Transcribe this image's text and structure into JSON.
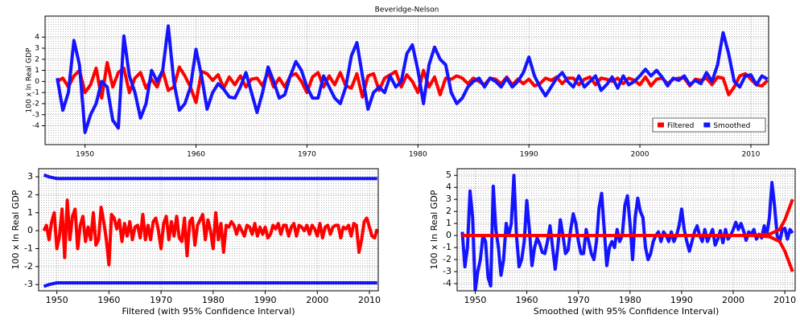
{
  "chart_data": [
    {
      "type": "line",
      "title": "Beveridge-Nelson",
      "ylabel": "100 x ln Real GDP",
      "legend": "lower right",
      "grid": true,
      "xlim": [
        1946.4,
        2011.6
      ],
      "ylim": [
        -5.7,
        5.9
      ],
      "xticks": [
        1950,
        1960,
        1970,
        1980,
        1990,
        2000,
        2010
      ],
      "yticks": [
        -4,
        -3,
        -2,
        -1,
        0,
        1,
        2,
        3,
        4
      ],
      "x": [
        1947.5,
        1948,
        1948.5,
        1949,
        1949.5,
        1950,
        1950.5,
        1951,
        1951.5,
        1952,
        1952.5,
        1953,
        1953.5,
        1954,
        1954.5,
        1955,
        1955.5,
        1956,
        1956.5,
        1957,
        1957.5,
        1958,
        1958.5,
        1959,
        1959.5,
        1960,
        1960.5,
        1961,
        1961.5,
        1962,
        1962.5,
        1963,
        1963.5,
        1964,
        1964.5,
        1965,
        1965.5,
        1966,
        1966.5,
        1967,
        1967.5,
        1968,
        1968.5,
        1969,
        1969.5,
        1970,
        1970.5,
        1971,
        1971.5,
        1972,
        1972.5,
        1973,
        1973.5,
        1974,
        1974.5,
        1975,
        1975.5,
        1976,
        1976.5,
        1977,
        1977.5,
        1978,
        1978.5,
        1979,
        1979.5,
        1980,
        1980.5,
        1981,
        1981.5,
        1982,
        1982.5,
        1983,
        1983.5,
        1984,
        1984.5,
        1985,
        1985.5,
        1986,
        1986.5,
        1987,
        1987.5,
        1988,
        1988.5,
        1989,
        1989.5,
        1990,
        1990.5,
        1991,
        1991.5,
        1992,
        1992.5,
        1993,
        1993.5,
        1994,
        1994.5,
        1995,
        1995.5,
        1996,
        1996.5,
        1997,
        1997.5,
        1998,
        1998.5,
        1999,
        1999.5,
        2000,
        2000.5,
        2001,
        2001.5,
        2002,
        2002.5,
        2003,
        2003.5,
        2004,
        2004.5,
        2005,
        2005.5,
        2006,
        2006.5,
        2007,
        2007.5,
        2008,
        2008.5,
        2009,
        2009.5,
        2010,
        2010.5,
        2011,
        2011.5
      ],
      "series": [
        {
          "name": "Filtered",
          "color": "#ff0000",
          "values": [
            0,
            0.3,
            -0.5,
            0.5,
            1,
            -1,
            -0.3,
            1.2,
            -1.5,
            1.7,
            -0.5,
            0.8,
            1.2,
            -1,
            0.3,
            0.8,
            -0.6,
            0.2,
            -0.5,
            1,
            -0.8,
            -0.5,
            1.3,
            0.5,
            -0.5,
            -1.9,
            0.9,
            0.7,
            0.1,
            0.6,
            -0.6,
            0.4,
            -0.3,
            0.5,
            -0.5,
            0.2,
            0.3,
            -0.4,
            0.9,
            -0.5,
            0.3,
            -0.5,
            0.5,
            0.7,
            0,
            -1,
            0.4,
            0.8,
            -0.5,
            0.5,
            -0.3,
            0.8,
            -0.4,
            -0.6,
            0.7,
            -1.4,
            0.5,
            0.7,
            -0.8,
            0.3,
            0.6,
            0.9,
            -0.5,
            0.6,
            0,
            -1,
            1,
            -0.5,
            0.4,
            -1.2,
            0.3,
            0.2,
            0.5,
            0.3,
            -0.2,
            0.3,
            0,
            -0.3,
            0.3,
            0.2,
            -0.2,
            0.4,
            -0.3,
            0.2,
            -0.2,
            0.2,
            -0.4,
            -0.2,
            0.3,
            0.1,
            0.4,
            -0.2,
            0.3,
            0.3,
            -0.3,
            0.2,
            0.4,
            -0.3,
            0.3,
            0.2,
            0,
            0.3,
            -0.2,
            0.3,
            0.1,
            -0.3,
            0.4,
            -0.4,
            0.2,
            0.3,
            -0.2,
            0.2,
            0.3,
            0.3,
            -0.4,
            0.2,
            0.1,
            0.3,
            -0.3,
            0.4,
            0.3,
            -1.2,
            -0.5,
            0.5,
            0.7,
            0.2,
            -0.3,
            -0.4,
            0.1
          ]
        },
        {
          "name": "Smoothed",
          "color": "#1414ff",
          "values": [
            0.3,
            -2.6,
            -1,
            3.7,
            1.5,
            -4.6,
            -3,
            -2,
            0,
            -0.5,
            -3.5,
            -4.2,
            4.1,
            0.5,
            -1,
            -3.3,
            -2,
            1,
            0,
            1,
            5,
            0,
            -2.6,
            -2,
            -0.5,
            2.9,
            0.5,
            -2.5,
            -1,
            -0.2,
            -0.7,
            -1.4,
            -1.5,
            -0.5,
            0.8,
            -1,
            -2.8,
            -1,
            1.3,
            0,
            -1.5,
            -1.2,
            0.5,
            1.8,
            1,
            -0.5,
            -1.5,
            -1.5,
            0.5,
            -0.5,
            -1.5,
            -2,
            -0.5,
            2.3,
            3.5,
            0.5,
            -2.5,
            -1,
            -0.5,
            -1,
            0.5,
            -0.5,
            0,
            2.5,
            3.3,
            1,
            -2,
            1.5,
            3.1,
            2,
            1.5,
            -1,
            -2,
            -1.5,
            -0.5,
            0,
            0.3,
            -0.5,
            0.3,
            0,
            -0.5,
            0.3,
            -0.5,
            0,
            0.8,
            2.2,
            0.5,
            -0.5,
            -1.3,
            -0.5,
            0.3,
            0.8,
            0,
            -0.5,
            0.5,
            -0.5,
            0,
            0.5,
            -0.8,
            -0.3,
            0.4,
            -0.6,
            0.5,
            -0.3,
            0,
            0.5,
            1.1,
            0.5,
            1,
            0.4,
            -0.4,
            0.3,
            0.1,
            0.5,
            -0.3,
            0.1,
            -0.2,
            0.8,
            0,
            1.5,
            4.4,
            2.5,
            0,
            -0.5,
            0.5,
            0.6,
            -0.3,
            0.5,
            0.2
          ]
        }
      ]
    },
    {
      "type": "line",
      "xlabel": "Filtered (with 95% Confidence Interval)",
      "ylabel": "100 x ln Real GDP",
      "grid": true,
      "xlim": [
        1946.5,
        2011.7
      ],
      "ylim": [
        -3.35,
        3.45
      ],
      "xticks": [
        1950,
        1960,
        1970,
        1980,
        1990,
        2000,
        2010
      ],
      "yticks": [
        -3,
        -2,
        -1,
        0,
        1,
        2,
        3
      ],
      "x": [
        1947.5,
        1948,
        1948.5,
        1949,
        1949.5,
        1950,
        1950.5,
        1951,
        1951.5,
        1952,
        1952.5,
        1953,
        1953.5,
        1954,
        1954.5,
        1955,
        1955.5,
        1956,
        1956.5,
        1957,
        1957.5,
        1958,
        1958.5,
        1959,
        1959.5,
        1960,
        1960.5,
        1961,
        1961.5,
        1962,
        1962.5,
        1963,
        1963.5,
        1964,
        1964.5,
        1965,
        1965.5,
        1966,
        1966.5,
        1967,
        1967.5,
        1968,
        1968.5,
        1969,
        1969.5,
        1970,
        1970.5,
        1971,
        1971.5,
        1972,
        1972.5,
        1973,
        1973.5,
        1974,
        1974.5,
        1975,
        1975.5,
        1976,
        1976.5,
        1977,
        1977.5,
        1978,
        1978.5,
        1979,
        1979.5,
        1980,
        1980.5,
        1981,
        1981.5,
        1982,
        1982.5,
        1983,
        1983.5,
        1984,
        1984.5,
        1985,
        1985.5,
        1986,
        1986.5,
        1987,
        1987.5,
        1988,
        1988.5,
        1989,
        1989.5,
        1990,
        1990.5,
        1991,
        1991.5,
        1992,
        1992.5,
        1993,
        1993.5,
        1994,
        1994.5,
        1995,
        1995.5,
        1996,
        1996.5,
        1997,
        1997.5,
        1998,
        1998.5,
        1999,
        1999.5,
        2000,
        2000.5,
        2001,
        2001.5,
        2002,
        2002.5,
        2003,
        2003.5,
        2004,
        2004.5,
        2005,
        2005.5,
        2006,
        2006.5,
        2007,
        2007.5,
        2008,
        2008.5,
        2009,
        2009.5,
        2010,
        2010.5,
        2011,
        2011.5
      ],
      "series": [
        {
          "color": "#1414ff",
          "x": [
            1947.5,
            1948.5,
            1950,
            2011.5
          ],
          "values": [
            3.1,
            3.0,
            2.9,
            2.9
          ]
        },
        {
          "color": "#1414ff",
          "x": [
            1947.5,
            1948.5,
            1950,
            2011.5
          ],
          "values": [
            -3.1,
            -3.0,
            -2.9,
            -2.9
          ]
        },
        {
          "color": "#ff0000",
          "values": [
            0,
            0.3,
            -0.5,
            0.5,
            1,
            -1,
            -0.3,
            1.2,
            -1.5,
            1.7,
            -0.5,
            0.8,
            1.2,
            -1,
            0.3,
            0.8,
            -0.6,
            0.2,
            -0.5,
            1,
            -0.8,
            -0.5,
            1.3,
            0.5,
            -0.5,
            -1.9,
            0.9,
            0.7,
            0.1,
            0.6,
            -0.6,
            0.4,
            -0.3,
            0.5,
            -0.5,
            0.2,
            0.3,
            -0.4,
            0.9,
            -0.5,
            0.3,
            -0.5,
            0.5,
            0.7,
            0,
            -1,
            0.4,
            0.8,
            -0.5,
            0.5,
            -0.3,
            0.8,
            -0.4,
            -0.6,
            0.7,
            -1.4,
            0.5,
            0.7,
            -0.8,
            0.3,
            0.6,
            0.9,
            -0.5,
            0.6,
            0,
            -1,
            1,
            -0.5,
            0.4,
            -1.2,
            0.3,
            0.2,
            0.5,
            0.3,
            -0.2,
            0.3,
            0,
            -0.3,
            0.3,
            0.2,
            -0.2,
            0.4,
            -0.3,
            0.2,
            -0.2,
            0.2,
            -0.4,
            -0.2,
            0.3,
            0.1,
            0.4,
            -0.2,
            0.3,
            0.3,
            -0.3,
            0.2,
            0.4,
            -0.3,
            0.3,
            0.2,
            0,
            0.3,
            -0.2,
            0.3,
            0.1,
            -0.3,
            0.4,
            -0.4,
            0.2,
            0.3,
            -0.2,
            0.2,
            0.3,
            0.3,
            -0.4,
            0.2,
            0.1,
            0.3,
            -0.3,
            0.4,
            0.3,
            -1.2,
            -0.5,
            0.5,
            0.7,
            0.2,
            -0.3,
            -0.4,
            0.1
          ]
        }
      ]
    },
    {
      "type": "line",
      "xlabel": "Smoothed (with 95% Confidence Interval)",
      "ylabel": "100 x ln Real GDP",
      "grid": true,
      "xlim": [
        1946.5,
        2012
      ],
      "ylim": [
        -4.6,
        5.55
      ],
      "xticks": [
        1950,
        1960,
        1970,
        1980,
        1990,
        2000,
        2010
      ],
      "yticks": [
        -4,
        -3,
        -2,
        -1,
        0,
        1,
        2,
        3,
        4,
        5
      ],
      "x": [
        1947.5,
        1948,
        1948.5,
        1949,
        1949.5,
        1950,
        1950.5,
        1951,
        1951.5,
        1952,
        1952.5,
        1953,
        1953.5,
        1954,
        1954.5,
        1955,
        1955.5,
        1956,
        1956.5,
        1957,
        1957.5,
        1958,
        1958.5,
        1959,
        1959.5,
        1960,
        1960.5,
        1961,
        1961.5,
        1962,
        1962.5,
        1963,
        1963.5,
        1964,
        1964.5,
        1965,
        1965.5,
        1966,
        1966.5,
        1967,
        1967.5,
        1968,
        1968.5,
        1969,
        1969.5,
        1970,
        1970.5,
        1971,
        1971.5,
        1972,
        1972.5,
        1973,
        1973.5,
        1974,
        1974.5,
        1975,
        1975.5,
        1976,
        1976.5,
        1977,
        1977.5,
        1978,
        1978.5,
        1979,
        1979.5,
        1980,
        1980.5,
        1981,
        1981.5,
        1982,
        1982.5,
        1983,
        1983.5,
        1984,
        1984.5,
        1985,
        1985.5,
        1986,
        1986.5,
        1987,
        1987.5,
        1988,
        1988.5,
        1989,
        1989.5,
        1990,
        1990.5,
        1991,
        1991.5,
        1992,
        1992.5,
        1993,
        1993.5,
        1994,
        1994.5,
        1995,
        1995.5,
        1996,
        1996.5,
        1997,
        1997.5,
        1998,
        1998.5,
        1999,
        1999.5,
        2000,
        2000.5,
        2001,
        2001.5,
        2002,
        2002.5,
        2003,
        2003.5,
        2004,
        2004.5,
        2005,
        2005.5,
        2006,
        2006.5,
        2007,
        2007.5,
        2008,
        2008.5,
        2009,
        2009.5,
        2010,
        2010.5,
        2011,
        2011.5
      ],
      "series": [
        {
          "color": "#1414ff",
          "values": [
            0.3,
            -2.6,
            -1,
            3.7,
            1.5,
            -4.6,
            -3,
            -2,
            0,
            -0.5,
            -3.5,
            -4.2,
            4.1,
            0.5,
            -1,
            -3.3,
            -2,
            1,
            0,
            1,
            5,
            0,
            -2.6,
            -2,
            -0.5,
            2.9,
            0.5,
            -2.5,
            -1,
            -0.2,
            -0.7,
            -1.4,
            -1.5,
            -0.5,
            0.8,
            -1,
            -2.8,
            -1,
            1.3,
            0,
            -1.5,
            -1.2,
            0.5,
            1.8,
            1,
            -0.5,
            -1.5,
            -1.5,
            0.5,
            -0.5,
            -1.5,
            -2,
            -0.5,
            2.3,
            3.5,
            0.5,
            -2.5,
            -1,
            -0.5,
            -1,
            0.5,
            -0.5,
            0,
            2.5,
            3.3,
            1,
            -2,
            1.5,
            3.1,
            2,
            1.5,
            -1,
            -2,
            -1.5,
            -0.5,
            0,
            0.3,
            -0.5,
            0.3,
            0,
            -0.5,
            0.3,
            -0.5,
            0,
            0.8,
            2.2,
            0.5,
            -0.5,
            -1.3,
            -0.5,
            0.3,
            0.8,
            0,
            -0.5,
            0.5,
            -0.5,
            0,
            0.5,
            -0.8,
            -0.3,
            0.4,
            -0.6,
            0.5,
            -0.3,
            0,
            0.5,
            1.1,
            0.5,
            1,
            0.4,
            -0.4,
            0.3,
            0.1,
            0.5,
            -0.3,
            0.1,
            -0.2,
            0.8,
            0,
            1.5,
            4.4,
            2.5,
            0,
            -0.5,
            0.5,
            0.6,
            -0.3,
            0.5,
            0.2
          ]
        },
        {
          "color": "#ff0000",
          "x": [
            1947.5,
            2004,
            2007,
            2009,
            2010,
            2011.5
          ],
          "values": [
            0,
            0,
            0.1,
            0.5,
            1.3,
            3.0
          ]
        },
        {
          "color": "#ff0000",
          "x": [
            1947.5,
            2004,
            2007,
            2009,
            2010,
            2011.5
          ],
          "values": [
            0,
            0,
            -0.1,
            -0.5,
            -1.3,
            -3.0
          ]
        }
      ]
    }
  ]
}
